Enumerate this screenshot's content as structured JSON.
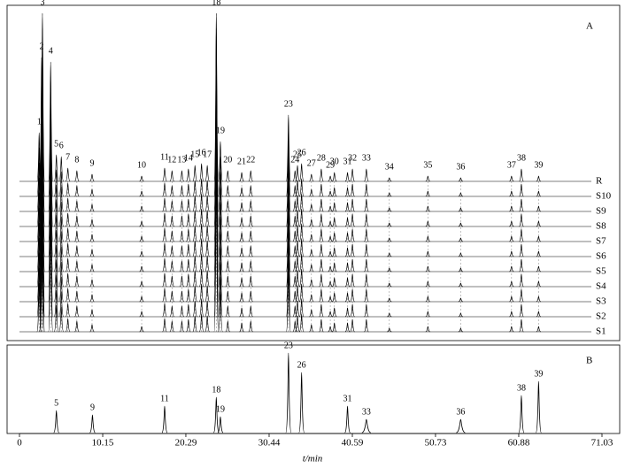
{
  "chart_data": {
    "type": "chromatogram",
    "xlabel": "t/min",
    "xlim": [
      0,
      71.03
    ],
    "xticks": [
      0,
      10.15,
      20.29,
      30.44,
      40.59,
      50.73,
      60.88,
      71.03
    ],
    "panels": [
      {
        "label": "A",
        "traces": [
          "R",
          "S10",
          "S9",
          "S8",
          "S7",
          "S6",
          "S5",
          "S4",
          "S3",
          "S2",
          "S1"
        ],
        "peaks": [
          {
            "label": "1",
            "x": 2.4,
            "height": 55
          },
          {
            "label": "2",
            "x": 2.7,
            "height": 140
          },
          {
            "label": "3",
            "x": 2.8,
            "height": 190
          },
          {
            "label": "4",
            "x": 3.8,
            "height": 135
          },
          {
            "label": "5",
            "x": 4.5,
            "height": 30
          },
          {
            "label": "6",
            "x": 5.1,
            "height": 28
          },
          {
            "label": "7",
            "x": 5.9,
            "height": 15
          },
          {
            "label": "8",
            "x": 7.0,
            "height": 12
          },
          {
            "label": "9",
            "x": 8.85,
            "height": 8
          },
          {
            "label": "10",
            "x": 14.9,
            "height": 6
          },
          {
            "label": "11",
            "x": 17.7,
            "height": 15
          },
          {
            "label": "12",
            "x": 18.6,
            "height": 12
          },
          {
            "label": "13",
            "x": 19.8,
            "height": 12
          },
          {
            "label": "14",
            "x": 20.6,
            "height": 14
          },
          {
            "label": "15",
            "x": 21.4,
            "height": 18
          },
          {
            "label": "16",
            "x": 22.2,
            "height": 20
          },
          {
            "label": "17",
            "x": 22.9,
            "height": 18
          },
          {
            "label": "18",
            "x": 24.0,
            "height": 190
          },
          {
            "label": "19",
            "x": 24.5,
            "height": 45
          },
          {
            "label": "20",
            "x": 25.4,
            "height": 12
          },
          {
            "label": "21",
            "x": 27.1,
            "height": 10
          },
          {
            "label": "22",
            "x": 28.2,
            "height": 12
          },
          {
            "label": "23",
            "x": 32.8,
            "height": 75
          },
          {
            "label": "24",
            "x": 33.6,
            "height": 12
          },
          {
            "label": "25",
            "x": 33.9,
            "height": 18
          },
          {
            "label": "26",
            "x": 34.4,
            "height": 20
          },
          {
            "label": "27",
            "x": 35.6,
            "height": 8
          },
          {
            "label": "28",
            "x": 36.8,
            "height": 14
          },
          {
            "label": "29",
            "x": 37.9,
            "height": 6
          },
          {
            "label": "30",
            "x": 38.4,
            "height": 10
          },
          {
            "label": "31",
            "x": 40.0,
            "height": 10
          },
          {
            "label": "32",
            "x": 40.6,
            "height": 14
          },
          {
            "label": "33",
            "x": 42.3,
            "height": 14
          },
          {
            "label": "34",
            "x": 45.1,
            "height": 4
          },
          {
            "label": "35",
            "x": 49.8,
            "height": 6
          },
          {
            "label": "36",
            "x": 53.8,
            "height": 4
          },
          {
            "label": "37",
            "x": 60.0,
            "height": 6
          },
          {
            "label": "38",
            "x": 61.2,
            "height": 14
          },
          {
            "label": "39",
            "x": 63.3,
            "height": 6
          }
        ]
      },
      {
        "label": "B",
        "peaks": [
          {
            "label": "5",
            "x": 4.5,
            "height": 25
          },
          {
            "label": "9",
            "x": 8.9,
            "height": 20
          },
          {
            "label": "11",
            "x": 17.7,
            "height": 30
          },
          {
            "label": "18",
            "x": 24.0,
            "height": 40
          },
          {
            "label": "19",
            "x": 24.5,
            "height": 18
          },
          {
            "label": "23",
            "x": 32.8,
            "height": 90
          },
          {
            "label": "26",
            "x": 34.4,
            "height": 68
          },
          {
            "label": "31",
            "x": 40.0,
            "height": 30
          },
          {
            "label": "33",
            "x": 42.3,
            "height": 15
          },
          {
            "label": "36",
            "x": 53.8,
            "height": 15
          },
          {
            "label": "38",
            "x": 61.2,
            "height": 42
          },
          {
            "label": "39",
            "x": 63.3,
            "height": 58
          }
        ]
      }
    ]
  }
}
